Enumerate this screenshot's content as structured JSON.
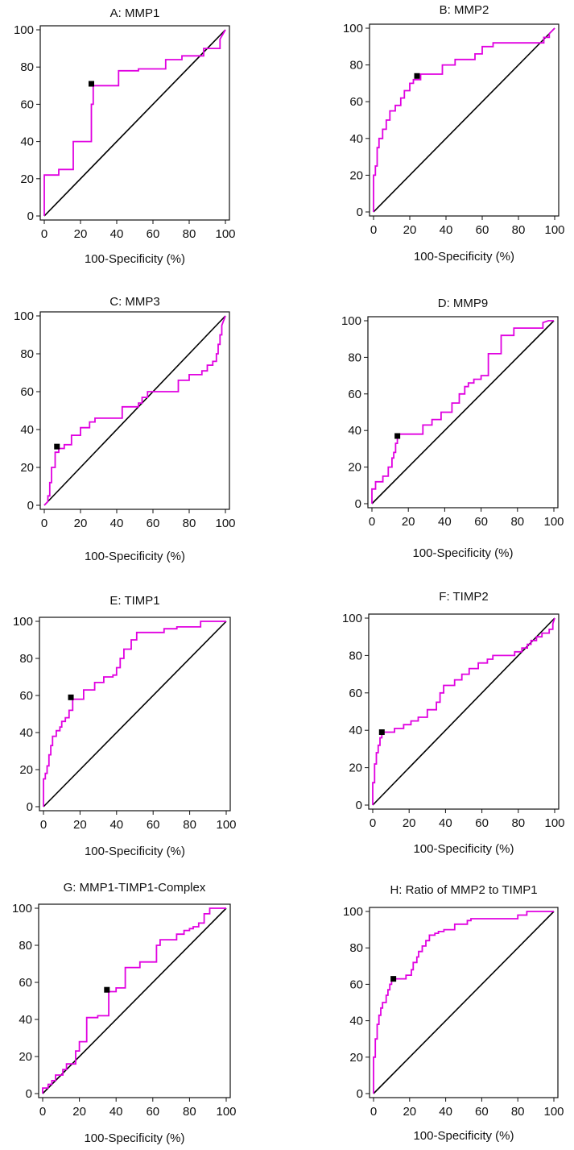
{
  "colors": {
    "roc_curve": "#e000e0",
    "diagonal": "#000000",
    "cutoff_marker": "#000000"
  },
  "axis": {
    "ticks": [
      "0",
      "20",
      "40",
      "60",
      "80",
      "100"
    ]
  },
  "chart_data": [
    {
      "type": "line",
      "title": "A: MMP1",
      "xlabel": "100-Specificity (%)",
      "ylabel": "",
      "xlim": [
        0,
        100
      ],
      "ylim": [
        0,
        100
      ],
      "grid": false,
      "series": [
        {
          "x": [
            0,
            0,
            8,
            8,
            16,
            16,
            26,
            26,
            27,
            27,
            41,
            41,
            52,
            52,
            67,
            67,
            76,
            76,
            88,
            88,
            97,
            97,
            100
          ],
          "y": [
            0,
            22,
            22,
            25,
            25,
            40,
            40,
            60,
            60,
            70,
            70,
            78,
            78,
            79,
            79,
            84,
            84,
            86,
            86,
            90,
            90,
            95,
            100
          ]
        }
      ],
      "cutoff": {
        "x": 26,
        "y": 71
      }
    },
    {
      "type": "line",
      "title": "B: MMP2",
      "xlabel": "100-Specificity (%)",
      "ylabel": "",
      "xlim": [
        0,
        100
      ],
      "ylim": [
        0,
        100
      ],
      "grid": false,
      "series": [
        {
          "x": [
            0,
            0,
            1,
            1,
            2,
            2,
            3,
            3,
            5,
            5,
            7,
            7,
            9,
            9,
            12,
            12,
            15,
            15,
            17,
            17,
            20,
            20,
            22,
            22,
            26,
            26,
            38,
            38,
            45,
            45,
            56,
            56,
            60,
            60,
            66,
            66,
            94,
            94,
            97,
            97,
            100
          ],
          "y": [
            0,
            20,
            20,
            25,
            25,
            35,
            35,
            40,
            40,
            45,
            45,
            50,
            50,
            55,
            55,
            58,
            58,
            62,
            62,
            66,
            66,
            70,
            70,
            72,
            72,
            75,
            75,
            80,
            80,
            83,
            83,
            86,
            86,
            90,
            90,
            92,
            92,
            95,
            95,
            97,
            100
          ]
        }
      ],
      "cutoff": {
        "x": 24,
        "y": 74
      }
    },
    {
      "type": "line",
      "title": "C: MMP3",
      "xlabel": "100-Specificity (%)",
      "ylabel": "",
      "xlim": [
        0,
        100
      ],
      "ylim": [
        0,
        100
      ],
      "grid": false,
      "series": [
        {
          "x": [
            0,
            2,
            2,
            3,
            3,
            4,
            4,
            6,
            6,
            8,
            8,
            11,
            11,
            15,
            15,
            20,
            20,
            25,
            25,
            28,
            28,
            43,
            43,
            52,
            52,
            54,
            54,
            57,
            57,
            74,
            74,
            80,
            80,
            87,
            87,
            90,
            90,
            93,
            93,
            95,
            95,
            96,
            96,
            97,
            97,
            98,
            98,
            100
          ],
          "y": [
            0,
            2,
            5,
            5,
            12,
            12,
            20,
            20,
            28,
            28,
            30,
            30,
            32,
            32,
            37,
            37,
            41,
            41,
            44,
            44,
            46,
            46,
            52,
            52,
            54,
            54,
            57,
            57,
            60,
            60,
            66,
            66,
            69,
            69,
            71,
            71,
            74,
            74,
            76,
            76,
            80,
            80,
            85,
            85,
            90,
            90,
            95,
            100
          ]
        }
      ],
      "cutoff": {
        "x": 7,
        "y": 31
      }
    },
    {
      "type": "line",
      "title": "D: MMP9",
      "xlabel": "100-Specificity (%)",
      "ylabel": "",
      "xlim": [
        0,
        100
      ],
      "ylim": [
        0,
        100
      ],
      "grid": false,
      "series": [
        {
          "x": [
            0,
            0,
            2,
            2,
            6,
            6,
            9,
            9,
            11,
            11,
            12,
            12,
            13,
            13,
            14,
            14,
            15,
            15,
            28,
            28,
            33,
            33,
            38,
            38,
            44,
            44,
            48,
            48,
            51,
            51,
            53,
            53,
            56,
            56,
            60,
            60,
            64,
            64,
            71,
            71,
            78,
            78,
            94,
            94,
            97,
            100
          ],
          "y": [
            0,
            8,
            8,
            12,
            12,
            15,
            15,
            20,
            20,
            25,
            25,
            28,
            28,
            33,
            33,
            36,
            36,
            38,
            38,
            43,
            43,
            46,
            46,
            50,
            50,
            55,
            55,
            60,
            60,
            64,
            64,
            66,
            66,
            68,
            68,
            70,
            70,
            82,
            82,
            92,
            92,
            96,
            96,
            99,
            100,
            100
          ]
        }
      ],
      "cutoff": {
        "x": 14,
        "y": 37
      }
    },
    {
      "type": "line",
      "title": "E: TIMP1",
      "xlabel": "100-Specificity (%)",
      "ylabel": "",
      "xlim": [
        0,
        100
      ],
      "ylim": [
        0,
        100
      ],
      "grid": false,
      "series": [
        {
          "x": [
            0,
            0,
            1,
            1,
            2,
            2,
            3,
            3,
            4,
            4,
            5,
            5,
            7,
            7,
            9,
            9,
            10,
            10,
            12,
            12,
            14,
            14,
            16,
            16,
            22,
            22,
            28,
            28,
            33,
            33,
            38,
            38,
            40,
            40,
            42,
            42,
            44,
            44,
            48,
            48,
            51,
            51,
            66,
            66,
            73,
            73,
            86,
            86,
            100
          ],
          "y": [
            0,
            15,
            15,
            18,
            18,
            22,
            22,
            28,
            28,
            33,
            33,
            38,
            38,
            41,
            41,
            43,
            43,
            46,
            46,
            48,
            48,
            52,
            52,
            58,
            58,
            63,
            63,
            67,
            67,
            70,
            70,
            71,
            71,
            75,
            75,
            80,
            80,
            85,
            85,
            90,
            90,
            94,
            94,
            96,
            96,
            97,
            97,
            100,
            100
          ]
        }
      ],
      "cutoff": {
        "x": 15,
        "y": 59
      }
    },
    {
      "type": "line",
      "title": "F: TIMP2",
      "xlabel": "100-Specificity (%)",
      "ylabel": "",
      "xlim": [
        0,
        100
      ],
      "ylim": [
        0,
        100
      ],
      "grid": false,
      "series": [
        {
          "x": [
            0,
            0,
            1,
            1,
            2,
            2,
            3,
            3,
            4,
            4,
            5,
            5,
            12,
            12,
            17,
            17,
            21,
            21,
            25,
            25,
            30,
            30,
            35,
            35,
            37,
            37,
            39,
            39,
            45,
            45,
            49,
            49,
            53,
            53,
            58,
            58,
            63,
            63,
            66,
            66,
            78,
            78,
            82,
            82,
            85,
            85,
            87,
            87,
            90,
            90,
            93,
            93,
            97,
            97,
            99,
            99,
            100
          ],
          "y": [
            0,
            12,
            12,
            22,
            22,
            28,
            28,
            32,
            32,
            36,
            36,
            39,
            39,
            41,
            41,
            43,
            43,
            45,
            45,
            47,
            47,
            51,
            51,
            55,
            55,
            60,
            60,
            64,
            64,
            67,
            67,
            70,
            70,
            73,
            73,
            76,
            76,
            78,
            78,
            80,
            80,
            82,
            82,
            84,
            84,
            86,
            86,
            88,
            88,
            90,
            90,
            92,
            92,
            94,
            94,
            97,
            100
          ]
        }
      ],
      "cutoff": {
        "x": 5,
        "y": 39
      }
    },
    {
      "type": "line",
      "title": "G: MMP1-TIMP1-Complex",
      "xlabel": "100-Specificity (%)",
      "ylabel": "",
      "xlim": [
        0,
        100
      ],
      "ylim": [
        0,
        100
      ],
      "grid": false,
      "series": [
        {
          "x": [
            0,
            0,
            3,
            3,
            5,
            5,
            7,
            7,
            11,
            11,
            13,
            13,
            18,
            18,
            20,
            20,
            24,
            24,
            30,
            30,
            36,
            36,
            40,
            40,
            45,
            45,
            53,
            53,
            62,
            62,
            64,
            64,
            73,
            73,
            77,
            77,
            80,
            80,
            82,
            82,
            85,
            85,
            88,
            88,
            91,
            91,
            100
          ],
          "y": [
            0,
            3,
            3,
            5,
            5,
            7,
            7,
            10,
            10,
            13,
            13,
            16,
            16,
            23,
            23,
            28,
            28,
            41,
            41,
            42,
            42,
            55,
            55,
            57,
            57,
            68,
            68,
            71,
            71,
            80,
            80,
            83,
            83,
            86,
            86,
            88,
            88,
            89,
            89,
            90,
            90,
            92,
            92,
            97,
            97,
            100,
            100
          ]
        }
      ],
      "cutoff": {
        "x": 35,
        "y": 56
      }
    },
    {
      "type": "line",
      "title": "H: Ratio of MMP2 to TIMP1",
      "xlabel": "100-Specificity (%)",
      "ylabel": "",
      "xlim": [
        0,
        100
      ],
      "ylim": [
        0,
        100
      ],
      "grid": false,
      "series": [
        {
          "x": [
            0,
            0,
            1,
            1,
            2,
            2,
            3,
            3,
            4,
            4,
            5,
            5,
            7,
            7,
            8,
            8,
            9,
            9,
            10,
            10,
            12,
            12,
            18,
            18,
            21,
            21,
            22,
            22,
            24,
            24,
            25,
            25,
            27,
            27,
            29,
            29,
            31,
            31,
            34,
            34,
            36,
            36,
            39,
            39,
            45,
            45,
            52,
            52,
            54,
            54,
            80,
            80,
            85,
            85,
            100
          ],
          "y": [
            0,
            20,
            20,
            30,
            30,
            38,
            38,
            43,
            43,
            47,
            47,
            50,
            50,
            54,
            54,
            57,
            57,
            60,
            60,
            62,
            62,
            63,
            63,
            65,
            65,
            68,
            68,
            72,
            72,
            75,
            75,
            78,
            78,
            81,
            81,
            84,
            84,
            87,
            87,
            88,
            88,
            89,
            89,
            90,
            90,
            93,
            93,
            95,
            95,
            96,
            96,
            98,
            98,
            100,
            100
          ]
        }
      ],
      "cutoff": {
        "x": 11,
        "y": 63
      }
    }
  ]
}
